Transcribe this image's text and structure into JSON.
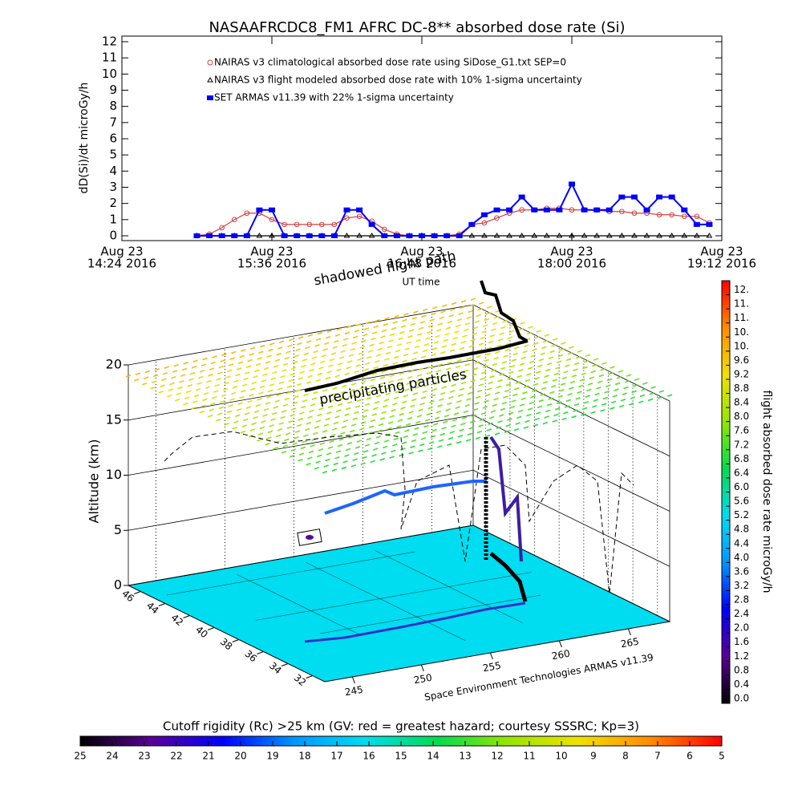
{
  "chart_data": [
    {
      "type": "line",
      "title": "NASAAFRCDC8_FM1 AFRC DC-8** absorbed dose rate (Si)",
      "y_label": "dD(Si)/dt microGy/h",
      "x_label": "UT time",
      "xlim": [
        "2016-08-23 14:24",
        "2016-08-23 19:12"
      ],
      "xticks": [
        {
          "value": "2016-08-23 14:24",
          "label": [
            "Aug 23",
            "14:24 2016"
          ]
        },
        {
          "value": "2016-08-23 15:36",
          "label": [
            "Aug 23",
            "15:36 2016"
          ]
        },
        {
          "value": "2016-08-23 16:48",
          "label": [
            "Aug 23",
            "16:48 2016"
          ]
        },
        {
          "value": "2016-08-23 18:00",
          "label": [
            "Aug 23",
            "18:00 2016"
          ]
        },
        {
          "value": "2016-08-23 19:12",
          "label": [
            "Aug 23",
            "19:12 2016"
          ]
        }
      ],
      "ylim": [
        0,
        12
      ],
      "yticks": [
        0,
        1,
        2,
        3,
        4,
        5,
        6,
        7,
        8,
        9,
        10,
        11,
        12
      ],
      "x": [
        "2016-08-23 15:00",
        "2016-08-23 15:06",
        "2016-08-23 15:12",
        "2016-08-23 15:18",
        "2016-08-23 15:24",
        "2016-08-23 15:30",
        "2016-08-23 15:36",
        "2016-08-23 15:42",
        "2016-08-23 15:48",
        "2016-08-23 15:54",
        "2016-08-23 16:00",
        "2016-08-23 16:06",
        "2016-08-23 16:12",
        "2016-08-23 16:18",
        "2016-08-23 16:24",
        "2016-08-23 16:30",
        "2016-08-23 16:36",
        "2016-08-23 16:42",
        "2016-08-23 16:48",
        "2016-08-23 16:54",
        "2016-08-23 17:00",
        "2016-08-23 17:06",
        "2016-08-23 17:12",
        "2016-08-23 17:18",
        "2016-08-23 17:24",
        "2016-08-23 17:30",
        "2016-08-23 17:36",
        "2016-08-23 17:42",
        "2016-08-23 17:48",
        "2016-08-23 17:54",
        "2016-08-23 18:00",
        "2016-08-23 18:06",
        "2016-08-23 18:12",
        "2016-08-23 18:18",
        "2016-08-23 18:24",
        "2016-08-23 18:30",
        "2016-08-23 18:36",
        "2016-08-23 18:42",
        "2016-08-23 18:48",
        "2016-08-23 18:54",
        "2016-08-23 19:00",
        "2016-08-23 19:06"
      ],
      "series": [
        {
          "name": "NAIRAS v3 climatological absorbed dose rate using SiDose_G1.txt SEP=0",
          "color": "#d04040",
          "marker": "circle",
          "values": [
            0,
            0.1,
            0.5,
            1.0,
            1.4,
            1.4,
            1.0,
            0.7,
            0.7,
            0.7,
            0.7,
            0.7,
            1.1,
            1.2,
            0.9,
            0.4,
            0.1,
            0,
            0,
            0,
            0,
            0.1,
            0.7,
            0.8,
            1.1,
            1.4,
            1.6,
            1.6,
            1.7,
            1.7,
            1.6,
            1.6,
            1.6,
            1.5,
            1.5,
            1.4,
            1.4,
            1.3,
            1.3,
            1.2,
            1.2,
            0.8
          ]
        },
        {
          "name": "NAIRAS v3 flight modeled absorbed dose rate with 10% 1-sigma uncertainty",
          "color": "#000000",
          "marker": "triangle",
          "values": [
            0,
            0,
            0,
            0,
            0,
            0,
            0,
            0,
            0,
            0,
            0,
            0,
            0,
            0,
            0,
            0,
            0,
            0,
            0,
            0,
            0,
            0,
            0,
            0,
            0,
            0,
            0,
            0,
            0,
            0,
            0,
            0,
            0,
            0,
            0,
            0,
            0,
            0,
            0,
            0,
            0,
            0
          ]
        },
        {
          "name": "SET ARMAS v11.39 with 22% 1-sigma uncertainty",
          "color": "#0000ff",
          "marker": "square",
          "values": [
            0,
            0,
            0,
            0,
            0,
            1.6,
            1.6,
            0,
            0,
            0,
            0,
            0,
            1.6,
            1.6,
            0.7,
            0,
            0,
            0,
            0,
            0,
            0,
            0,
            0.7,
            1.3,
            1.6,
            1.6,
            2.4,
            1.6,
            1.6,
            1.6,
            3.2,
            1.6,
            1.6,
            1.6,
            2.4,
            2.4,
            1.6,
            2.4,
            2.4,
            1.6,
            0.7,
            0.7
          ]
        }
      ]
    },
    {
      "type": "surface3d",
      "annotations": [
        "shadowed flight path",
        "precipitating particles"
      ],
      "credit": "Space Environment Technologies ARMAS v11.39",
      "zlabel": "Altitude (km)",
      "zlim": [
        0,
        20
      ],
      "zticks": [
        0,
        5,
        10,
        15,
        20
      ],
      "ylim": [
        47,
        31
      ],
      "yticks": [
        46,
        44,
        42,
        40,
        38,
        36,
        34,
        32
      ],
      "xlim": [
        243,
        268
      ],
      "xticks": [
        245,
        250,
        255,
        260,
        265
      ]
    },
    {
      "type": "colorbar",
      "orientation": "vertical",
      "title": "flight absorbed dose rate microGy/h",
      "zlim": [
        0,
        12
      ],
      "ticks": [
        {
          "value": 0,
          "label": "0.0"
        },
        0.4,
        0.8,
        1.2,
        1.6,
        {
          "value": 2,
          "label": "2.0"
        },
        2.4,
        2.8,
        3.2,
        3.6,
        {
          "value": 4,
          "label": "4.0"
        },
        4.4,
        4.8,
        5.2,
        5.6,
        {
          "value": 6,
          "label": "6.0"
        },
        6.4,
        6.8,
        7.2,
        7.6,
        {
          "value": 8,
          "label": "8.0"
        },
        8.4,
        8.8,
        9.2,
        9.6,
        {
          "value": 10,
          "label": "10."
        },
        {
          "value": 10.4,
          "label": "10."
        },
        {
          "value": 10.8,
          "label": "11."
        },
        {
          "value": 11.2,
          "label": "11."
        },
        {
          "value": 11.6,
          "label": "12."
        }
      ],
      "colors": [
        "#000000",
        "#5a0096",
        "#0000ff",
        "#0096ff",
        "#00dcf0",
        "#00dc50",
        "#96e600",
        "#f0e100",
        "#ff8c00",
        "#ff0000"
      ]
    },
    {
      "type": "colorbar",
      "orientation": "horizontal",
      "title": "Cutoff rigidity (Rc) >25 km (GV: red = greatest hazard; courtesy SSSRC; Kp=3)",
      "zlim": [
        25,
        5
      ],
      "ticks": [
        25,
        24,
        23,
        22,
        21,
        20,
        19,
        18,
        17,
        16,
        15,
        14,
        13,
        12,
        11,
        10,
        9,
        8,
        7,
        6,
        5
      ],
      "colors": [
        "#000000",
        "#5a0096",
        "#0000ff",
        "#0096ff",
        "#00dcf0",
        "#00dc50",
        "#96e600",
        "#f0e100",
        "#ff8c00",
        "#ff0000"
      ]
    }
  ]
}
